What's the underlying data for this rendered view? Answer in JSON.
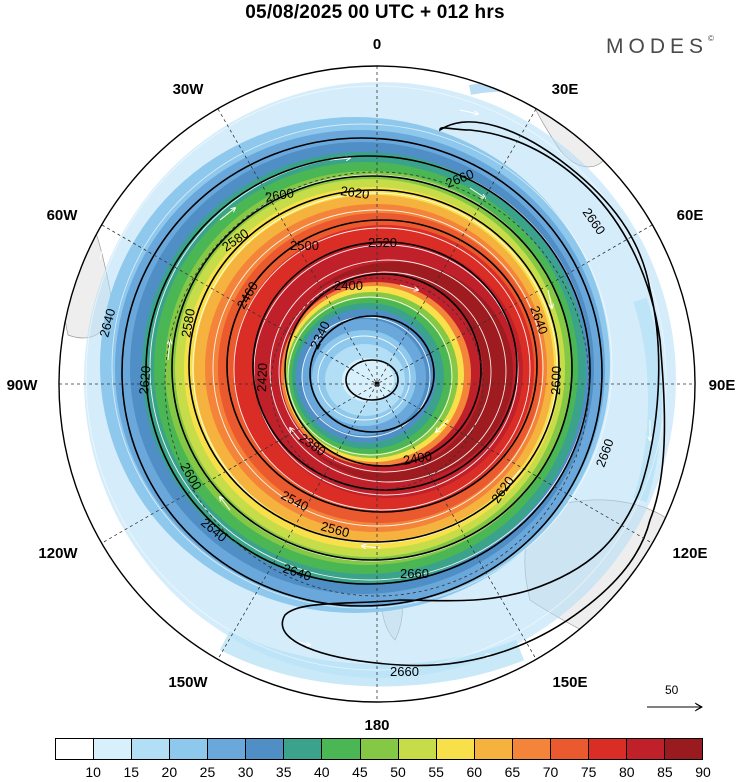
{
  "header": {
    "title": "05/08/2025  00 UTC  + 012 hrs",
    "brand": "MODES",
    "brand_mark": "©"
  },
  "map": {
    "projection": "polar stereographic (south pole centered)",
    "longitude_labels": {
      "top": "0",
      "top_right": "30E",
      "right_upper": "60E",
      "right": "90E",
      "right_lower": "120E",
      "bottom_right": "150E",
      "bottom": "180",
      "bottom_left": "150W",
      "left_lower": "120W",
      "left": "90W",
      "left_upper": "60W",
      "top_left": "30W"
    },
    "contour_labels": [
      "2660",
      "2660",
      "2660",
      "2660",
      "2660",
      "2640",
      "2640",
      "2640",
      "2640",
      "2620",
      "2620",
      "2620",
      "2600",
      "2600",
      "2600",
      "2580",
      "2580",
      "2560",
      "2540",
      "2520",
      "2500",
      "2460",
      "2420",
      "2400",
      "2400",
      "2380",
      "2340"
    ],
    "contour_levels": [
      2340,
      2400,
      2460,
      2520,
      2580,
      2620,
      2640,
      2660
    ],
    "wind_vector_reference": "50"
  },
  "colorbar": {
    "ticks": [
      "10",
      "15",
      "20",
      "25",
      "30",
      "35",
      "40",
      "45",
      "50",
      "55",
      "60",
      "65",
      "70",
      "75",
      "80",
      "85",
      "90"
    ],
    "colors": [
      "#ffffff",
      "#d8f0fb",
      "#b2dff5",
      "#8ec8ec",
      "#6aa8dc",
      "#4f8fc6",
      "#3ba38c",
      "#4bb654",
      "#84c846",
      "#c6dc48",
      "#f7e04a",
      "#f6b23e",
      "#f3843a",
      "#ea5a2e",
      "#da2d25",
      "#c0202a",
      "#9a1b1f"
    ]
  }
}
